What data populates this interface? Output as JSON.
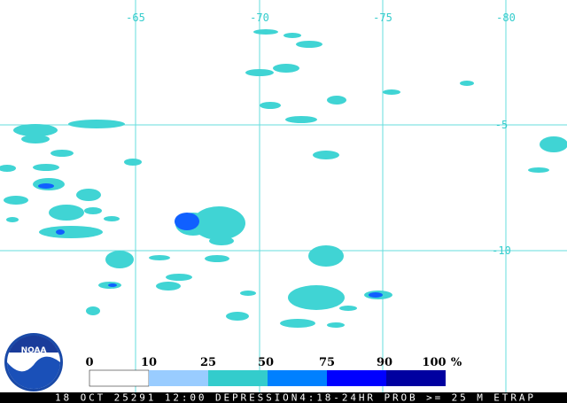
{
  "map": {
    "longitude_labels": [
      "-65",
      "-70",
      "-75",
      "-80"
    ],
    "latitude_labels": [
      "-5",
      "-10"
    ]
  },
  "logo": "NOAA",
  "legend": {
    "labels": [
      "0",
      "10",
      "25",
      "50",
      "75",
      "90",
      "100"
    ],
    "unit": "%"
  },
  "footer": "18 OCT 25291 12:00 DEPRESSION4:18-24HR PROB >= 25 M ETRAP"
}
